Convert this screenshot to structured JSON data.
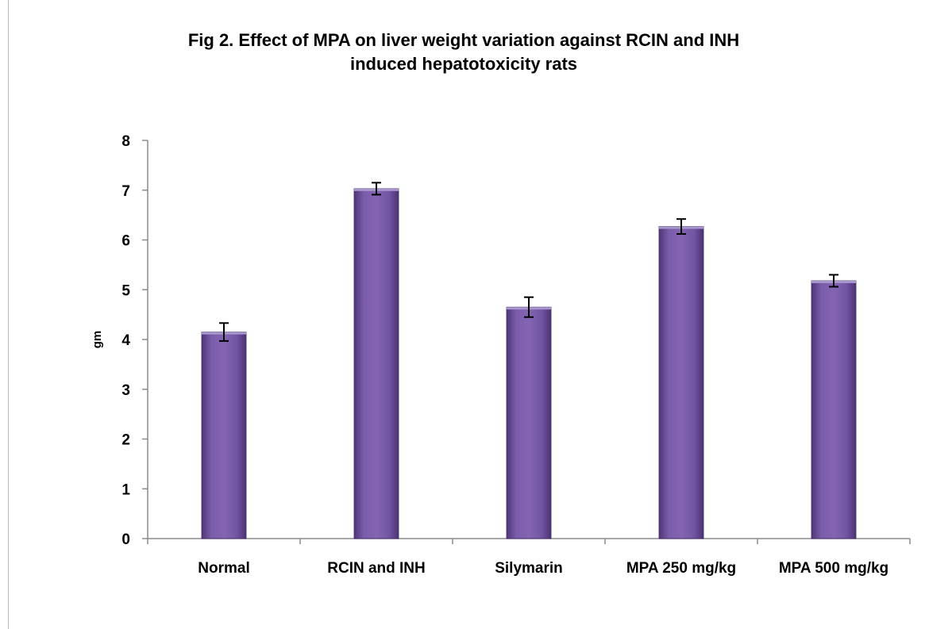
{
  "chart_data": {
    "type": "bar",
    "title_lines": [
      "Fig 2. Effect of MPA on liver weight variation against RCIN and INH",
      "induced hepatotoxicity rats"
    ],
    "xlabel": "",
    "ylabel": "gm",
    "ylim": [
      0,
      8
    ],
    "yticks": [
      "0",
      "1",
      "2",
      "3",
      "4",
      "5",
      "6",
      "7",
      "8"
    ],
    "categories": [
      "Normal",
      "RCIN and INH",
      "Silymarin",
      "MPA 250 mg/kg",
      "MPA 500 mg/kg"
    ],
    "values": [
      4.15,
      7.03,
      4.65,
      6.27,
      5.18
    ],
    "errors": [
      0.18,
      0.12,
      0.2,
      0.15,
      0.12
    ],
    "grid": false,
    "legend": "none",
    "bar_color": "#6a4c9c"
  }
}
